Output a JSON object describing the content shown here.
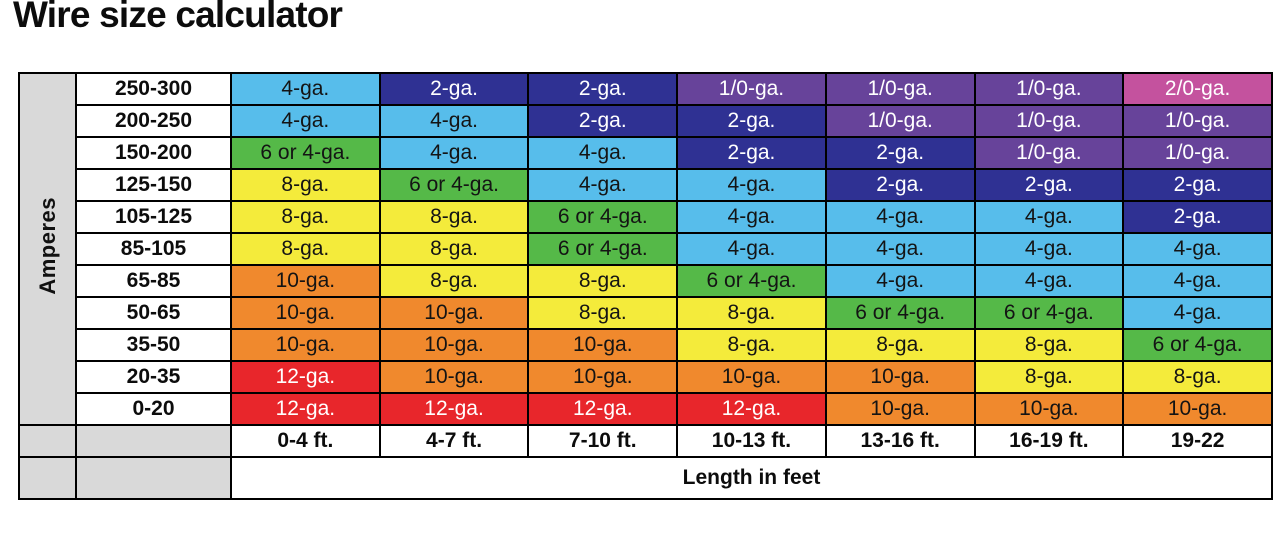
{
  "title": "Wire size calculator",
  "palette": {
    "red": {
      "bg": "#E8262B",
      "fg": "#FFFFFF"
    },
    "orange": {
      "bg": "#F0892D",
      "fg": "#141414"
    },
    "yellow": {
      "bg": "#F4EB3B",
      "fg": "#141414"
    },
    "green": {
      "bg": "#55B948",
      "fg": "#141414"
    },
    "lightblue": {
      "bg": "#57BDEB",
      "fg": "#141414"
    },
    "darkblue": {
      "bg": "#2F3193",
      "fg": "#FFFFFF"
    },
    "purple": {
      "bg": "#67439A",
      "fg": "#FFFFFF"
    },
    "magenta": {
      "bg": "#C4529E",
      "fg": "#FFFFFF"
    }
  },
  "chart_data": {
    "type": "heatmap",
    "title": "Wire size calculator",
    "ylabel": "Amperes",
    "xlabel": "Length in feet",
    "rows": [
      "250-300",
      "200-250",
      "150-200",
      "125-150",
      "105-125",
      "85-105",
      "65-85",
      "50-65",
      "35-50",
      "20-35",
      "0-20"
    ],
    "columns": [
      "0-4 ft.",
      "4-7 ft.",
      "7-10 ft.",
      "10-13 ft.",
      "13-16 ft.",
      "16-19 ft.",
      "19-22"
    ],
    "cells": [
      [
        {
          "t": "4-ga.",
          "c": "lightblue"
        },
        {
          "t": "2-ga.",
          "c": "darkblue"
        },
        {
          "t": "2-ga.",
          "c": "darkblue"
        },
        {
          "t": "1/0-ga.",
          "c": "purple"
        },
        {
          "t": "1/0-ga.",
          "c": "purple"
        },
        {
          "t": "1/0-ga.",
          "c": "purple"
        },
        {
          "t": "2/0-ga.",
          "c": "magenta"
        }
      ],
      [
        {
          "t": "4-ga.",
          "c": "lightblue"
        },
        {
          "t": "4-ga.",
          "c": "lightblue"
        },
        {
          "t": "2-ga.",
          "c": "darkblue"
        },
        {
          "t": "2-ga.",
          "c": "darkblue"
        },
        {
          "t": "1/0-ga.",
          "c": "purple"
        },
        {
          "t": "1/0-ga.",
          "c": "purple"
        },
        {
          "t": "1/0-ga.",
          "c": "purple"
        }
      ],
      [
        {
          "t": "6 or 4-ga.",
          "c": "green"
        },
        {
          "t": "4-ga.",
          "c": "lightblue"
        },
        {
          "t": "4-ga.",
          "c": "lightblue"
        },
        {
          "t": "2-ga.",
          "c": "darkblue"
        },
        {
          "t": "2-ga.",
          "c": "darkblue"
        },
        {
          "t": "1/0-ga.",
          "c": "purple"
        },
        {
          "t": "1/0-ga.",
          "c": "purple"
        }
      ],
      [
        {
          "t": "8-ga.",
          "c": "yellow"
        },
        {
          "t": "6 or 4-ga.",
          "c": "green"
        },
        {
          "t": "4-ga.",
          "c": "lightblue"
        },
        {
          "t": "4-ga.",
          "c": "lightblue"
        },
        {
          "t": "2-ga.",
          "c": "darkblue"
        },
        {
          "t": "2-ga.",
          "c": "darkblue"
        },
        {
          "t": "2-ga.",
          "c": "darkblue"
        }
      ],
      [
        {
          "t": "8-ga.",
          "c": "yellow"
        },
        {
          "t": "8-ga.",
          "c": "yellow"
        },
        {
          "t": "6 or 4-ga.",
          "c": "green"
        },
        {
          "t": "4-ga.",
          "c": "lightblue"
        },
        {
          "t": "4-ga.",
          "c": "lightblue"
        },
        {
          "t": "4-ga.",
          "c": "lightblue"
        },
        {
          "t": "2-ga.",
          "c": "darkblue"
        }
      ],
      [
        {
          "t": "8-ga.",
          "c": "yellow"
        },
        {
          "t": "8-ga.",
          "c": "yellow"
        },
        {
          "t": "6 or 4-ga.",
          "c": "green"
        },
        {
          "t": "4-ga.",
          "c": "lightblue"
        },
        {
          "t": "4-ga.",
          "c": "lightblue"
        },
        {
          "t": "4-ga.",
          "c": "lightblue"
        },
        {
          "t": "4-ga.",
          "c": "lightblue"
        }
      ],
      [
        {
          "t": "10-ga.",
          "c": "orange"
        },
        {
          "t": "8-ga.",
          "c": "yellow"
        },
        {
          "t": "8-ga.",
          "c": "yellow"
        },
        {
          "t": "6 or 4-ga.",
          "c": "green"
        },
        {
          "t": "4-ga.",
          "c": "lightblue"
        },
        {
          "t": "4-ga.",
          "c": "lightblue"
        },
        {
          "t": "4-ga.",
          "c": "lightblue"
        }
      ],
      [
        {
          "t": "10-ga.",
          "c": "orange"
        },
        {
          "t": "10-ga.",
          "c": "orange"
        },
        {
          "t": "8-ga.",
          "c": "yellow"
        },
        {
          "t": "8-ga.",
          "c": "yellow"
        },
        {
          "t": "6 or 4-ga.",
          "c": "green"
        },
        {
          "t": "6 or 4-ga.",
          "c": "green"
        },
        {
          "t": "4-ga.",
          "c": "lightblue"
        }
      ],
      [
        {
          "t": "10-ga.",
          "c": "orange"
        },
        {
          "t": "10-ga.",
          "c": "orange"
        },
        {
          "t": "10-ga.",
          "c": "orange"
        },
        {
          "t": "8-ga.",
          "c": "yellow"
        },
        {
          "t": "8-ga.",
          "c": "yellow"
        },
        {
          "t": "8-ga.",
          "c": "yellow"
        },
        {
          "t": "6 or 4-ga.",
          "c": "green"
        }
      ],
      [
        {
          "t": "12-ga.",
          "c": "red"
        },
        {
          "t": "10-ga.",
          "c": "orange"
        },
        {
          "t": "10-ga.",
          "c": "orange"
        },
        {
          "t": "10-ga.",
          "c": "orange"
        },
        {
          "t": "10-ga.",
          "c": "orange"
        },
        {
          "t": "8-ga.",
          "c": "yellow"
        },
        {
          "t": "8-ga.",
          "c": "yellow"
        }
      ],
      [
        {
          "t": "12-ga.",
          "c": "red"
        },
        {
          "t": "12-ga.",
          "c": "red"
        },
        {
          "t": "12-ga.",
          "c": "red"
        },
        {
          "t": "12-ga.",
          "c": "red"
        },
        {
          "t": "10-ga.",
          "c": "orange"
        },
        {
          "t": "10-ga.",
          "c": "orange"
        },
        {
          "t": "10-ga.",
          "c": "orange"
        }
      ]
    ]
  }
}
